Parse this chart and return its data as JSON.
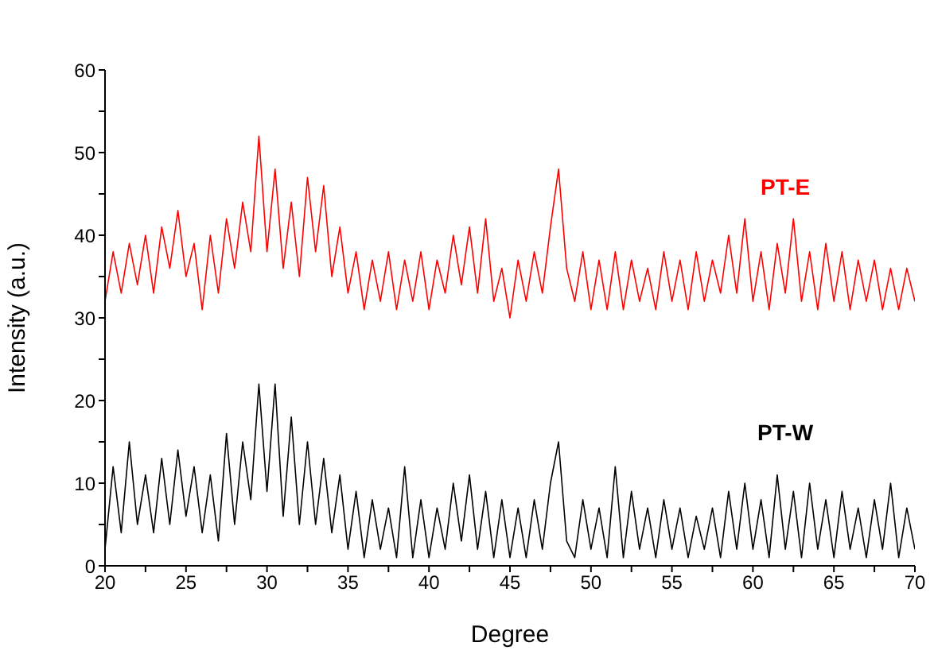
{
  "chart_data": {
    "type": "line",
    "xlabel": "Degree",
    "ylabel": "Intensity (a.u.)",
    "x": [
      20,
      20.5,
      21,
      21.5,
      22,
      22.5,
      23,
      23.5,
      24,
      24.5,
      25,
      25.5,
      26,
      26.5,
      27,
      27.5,
      28,
      28.5,
      29,
      29.5,
      30,
      30.5,
      31,
      31.5,
      32,
      32.5,
      33,
      33.5,
      34,
      34.5,
      35,
      35.5,
      36,
      36.5,
      37,
      37.5,
      38,
      38.5,
      39,
      39.5,
      40,
      40.5,
      41,
      41.5,
      42,
      42.5,
      43,
      43.5,
      44,
      44.5,
      45,
      45.5,
      46,
      46.5,
      47,
      47.5,
      48,
      48.5,
      49,
      49.5,
      50,
      50.5,
      51,
      51.5,
      52,
      52.5,
      53,
      53.5,
      54,
      54.5,
      55,
      55.5,
      56,
      56.5,
      57,
      57.5,
      58,
      58.5,
      59,
      59.5,
      60,
      60.5,
      61,
      61.5,
      62,
      62.5,
      63,
      63.5,
      64,
      64.5,
      65,
      65.5,
      66,
      66.5,
      67,
      67.5,
      68,
      68.5,
      69,
      69.5,
      70
    ],
    "series": [
      {
        "name": "PT-E",
        "color": "#ff0000",
        "values": [
          32,
          38,
          33,
          39,
          34,
          40,
          33,
          41,
          36,
          43,
          35,
          39,
          31,
          40,
          33,
          42,
          36,
          44,
          38,
          52,
          38,
          48,
          36,
          44,
          35,
          47,
          38,
          46,
          35,
          41,
          33,
          38,
          31,
          37,
          32,
          38,
          31,
          37,
          32,
          38,
          31,
          37,
          33,
          40,
          34,
          41,
          33,
          42,
          32,
          36,
          30,
          37,
          32,
          38,
          33,
          41,
          48,
          36,
          32,
          38,
          31,
          37,
          31,
          38,
          31,
          37,
          32,
          36,
          31,
          38,
          32,
          37,
          31,
          38,
          32,
          37,
          33,
          40,
          33,
          42,
          32,
          38,
          31,
          39,
          33,
          42,
          32,
          38,
          31,
          39,
          32,
          38,
          31,
          37,
          32,
          37,
          31,
          36,
          31,
          36,
          32
        ]
      },
      {
        "name": "PT-W",
        "color": "#000000",
        "values": [
          2,
          12,
          4,
          15,
          5,
          11,
          4,
          13,
          5,
          14,
          6,
          12,
          4,
          11,
          3,
          16,
          5,
          15,
          8,
          22,
          9,
          22,
          6,
          18,
          5,
          15,
          5,
          13,
          4,
          11,
          2,
          9,
          1,
          8,
          2,
          7,
          1,
          12,
          1,
          8,
          1,
          7,
          2,
          10,
          3,
          11,
          2,
          9,
          1,
          8,
          1,
          7,
          1,
          8,
          2,
          10,
          15,
          3,
          1,
          8,
          2,
          7,
          1,
          12,
          1,
          9,
          2,
          7,
          1,
          8,
          2,
          7,
          1,
          6,
          2,
          7,
          1,
          9,
          2,
          10,
          2,
          8,
          1,
          11,
          2,
          9,
          1,
          10,
          2,
          8,
          1,
          9,
          2,
          7,
          1,
          8,
          2,
          10,
          1,
          7,
          2
        ]
      }
    ],
    "xlim": [
      20,
      70
    ],
    "xticks": [
      20,
      {
        "value": 22.5,
        "label": null
      },
      25,
      {
        "value": 27.5,
        "label": null
      },
      30,
      {
        "value": 32.5,
        "label": null
      },
      35,
      {
        "value": 37.5,
        "label": null
      },
      40,
      {
        "value": 42.5,
        "label": null
      },
      45,
      {
        "value": 47.5,
        "label": null
      },
      50,
      {
        "value": 52.5,
        "label": null
      },
      55,
      {
        "value": 57.5,
        "label": null
      },
      60,
      {
        "value": 62.5,
        "label": null
      },
      65,
      {
        "value": 67.5,
        "label": null
      },
      70
    ],
    "ylim": [
      0,
      60
    ],
    "yticks": [
      0,
      {
        "value": 5,
        "label": null
      },
      10,
      {
        "value": 15,
        "label": null
      },
      20,
      {
        "value": 25,
        "label": null
      },
      30,
      {
        "value": 35,
        "label": null
      },
      40,
      {
        "value": 45,
        "label": null
      },
      50,
      {
        "value": 55,
        "label": null
      },
      60
    ],
    "grid": false,
    "legend": false,
    "marker": "none",
    "line_style": "solid"
  }
}
